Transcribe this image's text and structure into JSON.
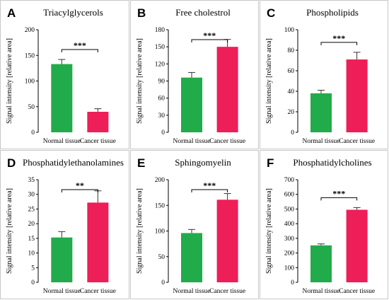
{
  "colors": {
    "normal": "#22ab4a",
    "cancer": "#ee1e58"
  },
  "chart_data": [
    {
      "type": "bar",
      "letter": "A",
      "title": "Triacylglycerols",
      "ylabel": "Signal intensity [relative area]",
      "categories": [
        "Normal tissue",
        "Cancer tissue"
      ],
      "values": [
        133,
        40
      ],
      "errors": [
        9,
        6
      ],
      "ylim": [
        0,
        200
      ],
      "yticks": [
        0,
        50,
        100,
        150,
        200
      ],
      "significance": "***"
    },
    {
      "type": "bar",
      "letter": "B",
      "title": "Free cholestrol",
      "ylabel": "Signal intensity [relative area]",
      "categories": [
        "Normal tissue",
        "Cancer tissue"
      ],
      "values": [
        96,
        150
      ],
      "errors": [
        9,
        13
      ],
      "ylim": [
        0,
        180
      ],
      "yticks": [
        0,
        30,
        60,
        90,
        120,
        150,
        180
      ],
      "significance": "***"
    },
    {
      "type": "bar",
      "letter": "C",
      "title": "Phospholipids",
      "ylabel": "Signal intensity [relative area]",
      "categories": [
        "Normal tissue",
        "Cancer tissue"
      ],
      "values": [
        38,
        71
      ],
      "errors": [
        3,
        7
      ],
      "ylim": [
        0,
        100
      ],
      "yticks": [
        0,
        20,
        40,
        60,
        80,
        100
      ],
      "significance": "***"
    },
    {
      "type": "bar",
      "letter": "D",
      "title": "Phosphatidylethanolamines",
      "ylabel": "Signal intensity [relative area]",
      "categories": [
        "Normal tissue",
        "Cancer tissue"
      ],
      "values": [
        15.3,
        27.2
      ],
      "errors": [
        2,
        4
      ],
      "ylim": [
        0,
        35
      ],
      "yticks": [
        0,
        5,
        10,
        15,
        20,
        25,
        30,
        35
      ],
      "significance": "**"
    },
    {
      "type": "bar",
      "letter": "E",
      "title": "Sphingomyelin",
      "ylabel": "Signal intensity [relative area]",
      "categories": [
        "Normal tissue",
        "Cancer tissue"
      ],
      "values": [
        96,
        161
      ],
      "errors": [
        7,
        12
      ],
      "ylim": [
        0,
        200
      ],
      "yticks": [
        0,
        50,
        100,
        150,
        200
      ],
      "significance": "***"
    },
    {
      "type": "bar",
      "letter": "F",
      "title": "Phosphatidylcholines",
      "ylabel": "Signal intensity [relative area]",
      "categories": [
        "Normal tissue",
        "Cancer tissue"
      ],
      "values": [
        252,
        495
      ],
      "errors": [
        10,
        15
      ],
      "ylim": [
        0,
        700
      ],
      "yticks": [
        0,
        100,
        200,
        300,
        400,
        500,
        600,
        700
      ],
      "significance": "***"
    }
  ]
}
